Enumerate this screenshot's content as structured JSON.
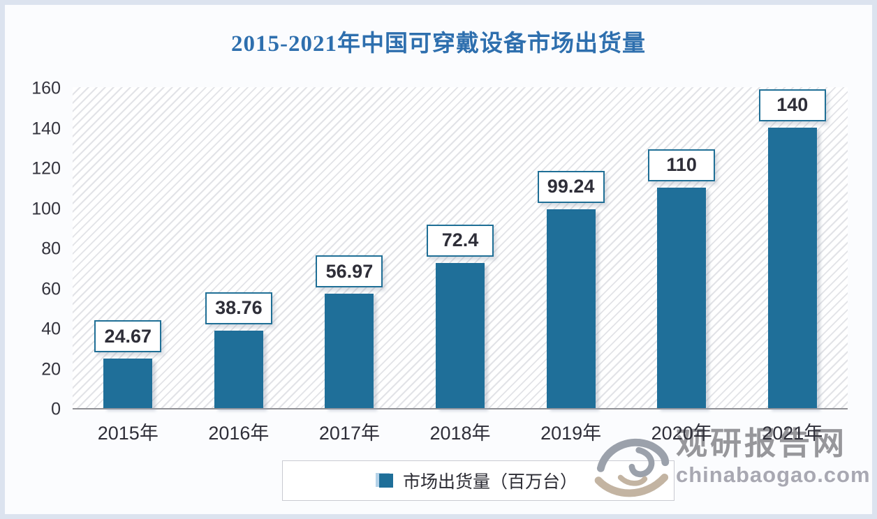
{
  "title": {
    "text": "2015-2021年中国可穿戴设备市场出货量",
    "color": "#2e6fae"
  },
  "chart_data": {
    "type": "bar",
    "title": "2015-2021年中国可穿戴设备市场出货量",
    "categories": [
      "2015年",
      "2016年",
      "2017年",
      "2018年",
      "2019年",
      "2020年",
      "2021年"
    ],
    "values": [
      24.67,
      38.76,
      56.97,
      72.4,
      99.24,
      110,
      140
    ],
    "value_labels": [
      "24.67",
      "38.76",
      "56.97",
      "72.4",
      "99.24",
      "110",
      "140"
    ],
    "xlabel": "",
    "ylabel": "",
    "ylim": [
      0,
      160
    ],
    "ytick_step": 20,
    "ytick_labels": [
      "0",
      "20",
      "40",
      "60",
      "80",
      "100",
      "120",
      "140",
      "160"
    ],
    "grid": false,
    "plot_background": "diagonal-hatch",
    "legend": {
      "label": "市场出货量（百万台）",
      "position": "bottom"
    },
    "bar_color": "#1f6f99",
    "data_label_border_color": "#1f6f96",
    "data_label_text_color": "#2e2e38",
    "axis_text_color": "#33333d"
  },
  "watermark": {
    "logo_icon": "swirl-logo",
    "site_name": "观研报告网",
    "site_url": "chinabaogao.com"
  }
}
